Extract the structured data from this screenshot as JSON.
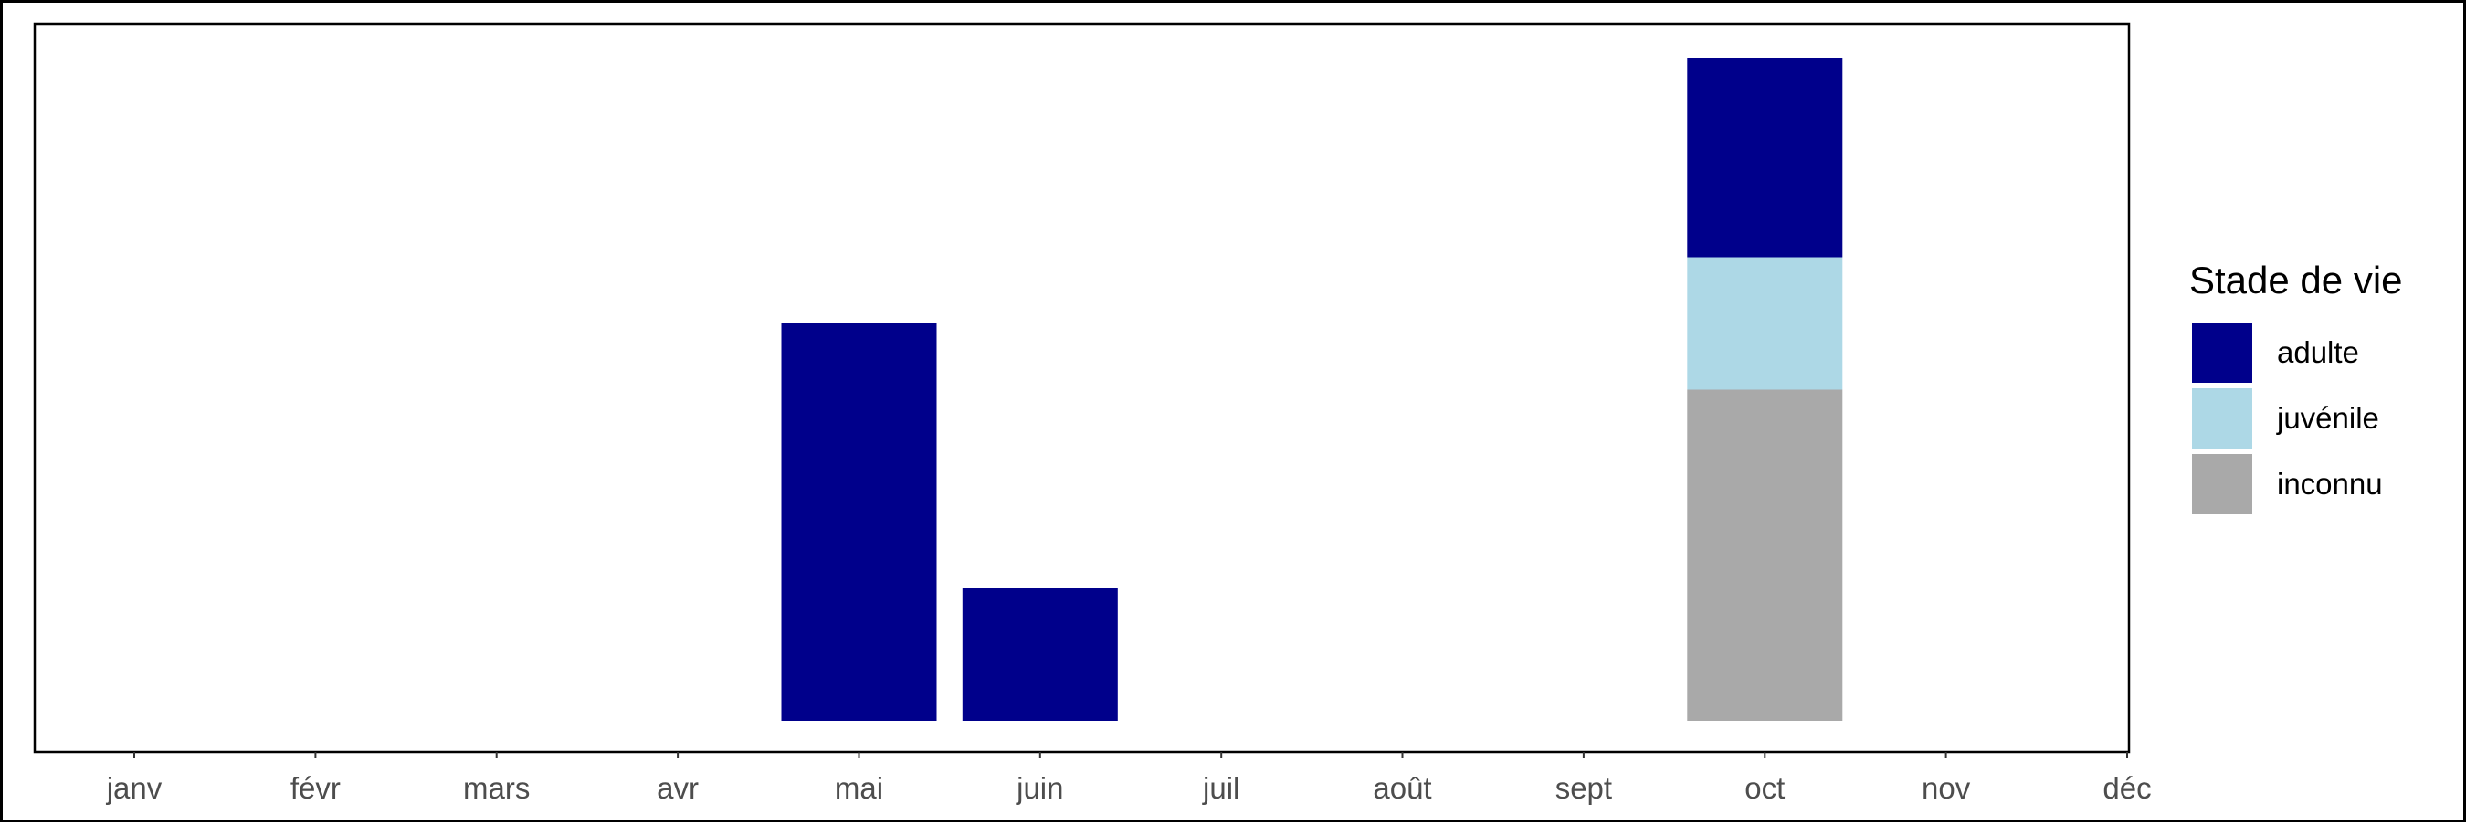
{
  "chart_data": {
    "type": "bar",
    "stacked": true,
    "categories": [
      "janv",
      "févr",
      "mars",
      "avr",
      "mai",
      "juin",
      "juil",
      "août",
      "sept",
      "oct",
      "nov",
      "déc"
    ],
    "series": [
      {
        "name": "inconnu",
        "color": "#A9A9A9",
        "values": [
          0,
          0,
          0,
          0,
          0,
          0,
          0,
          0,
          0,
          5,
          0,
          0
        ]
      },
      {
        "name": "juvénile",
        "color": "#ADD8E6",
        "values": [
          0,
          0,
          0,
          0,
          0,
          0,
          0,
          0,
          0,
          2,
          0,
          0
        ]
      },
      {
        "name": "adulte",
        "color": "#00008B",
        "values": [
          0,
          0,
          0,
          0,
          6,
          2,
          0,
          0,
          0,
          3,
          0,
          0
        ]
      }
    ],
    "ylim": [
      0,
      10.5
    ],
    "show_y_axis": false,
    "grid": false,
    "legend": {
      "title": "Stade de vie",
      "placement": "right",
      "entries": [
        {
          "label": "adulte",
          "color": "#00008B"
        },
        {
          "label": "juvénile",
          "color": "#ADD8E6"
        },
        {
          "label": "inconnu",
          "color": "#A9A9A9"
        }
      ]
    }
  }
}
